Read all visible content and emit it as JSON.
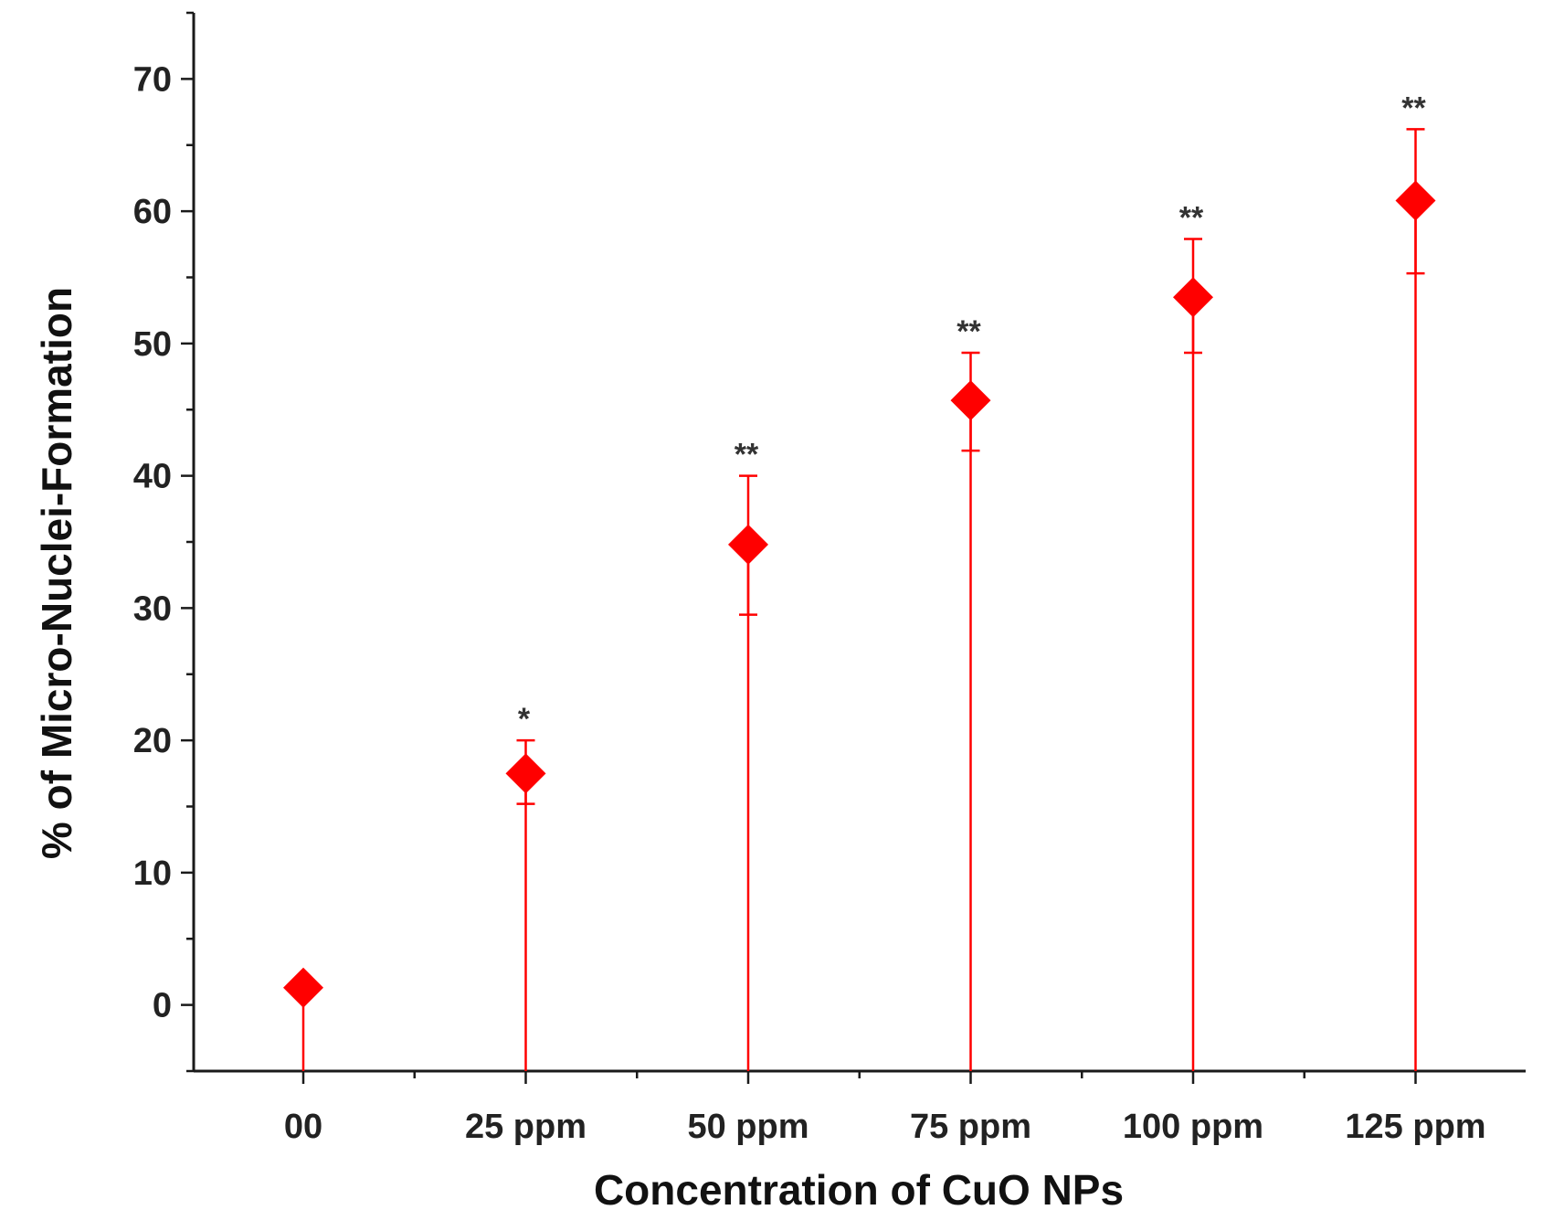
{
  "chart_data": {
    "type": "scatter",
    "title": "",
    "xlabel": "Concentration of CuO NPs",
    "ylabel": "% of Micro-Nuclei-Formation",
    "categories": [
      "00",
      "25 ppm",
      "50 ppm",
      "75 ppm",
      "100 ppm",
      "125 ppm"
    ],
    "ylim": [
      -5,
      75
    ],
    "yticks": [
      "0",
      "10",
      "20",
      "30",
      "40",
      "50",
      "60",
      "70"
    ],
    "series": [
      {
        "values": [
          1.3,
          17.5,
          34.8,
          45.7,
          53.5,
          60.8
        ],
        "error_low": [
          null,
          15.2,
          29.5,
          41.9,
          49.3,
          55.3
        ],
        "error_high": [
          null,
          20.0,
          40.0,
          49.3,
          57.9,
          66.2
        ],
        "color": "#ff0000",
        "marker": "diamond",
        "stem_from": -5
      }
    ],
    "annotations": [
      "",
      "*",
      "**",
      "**",
      "**",
      "**"
    ],
    "grid": false,
    "legend": "none"
  }
}
